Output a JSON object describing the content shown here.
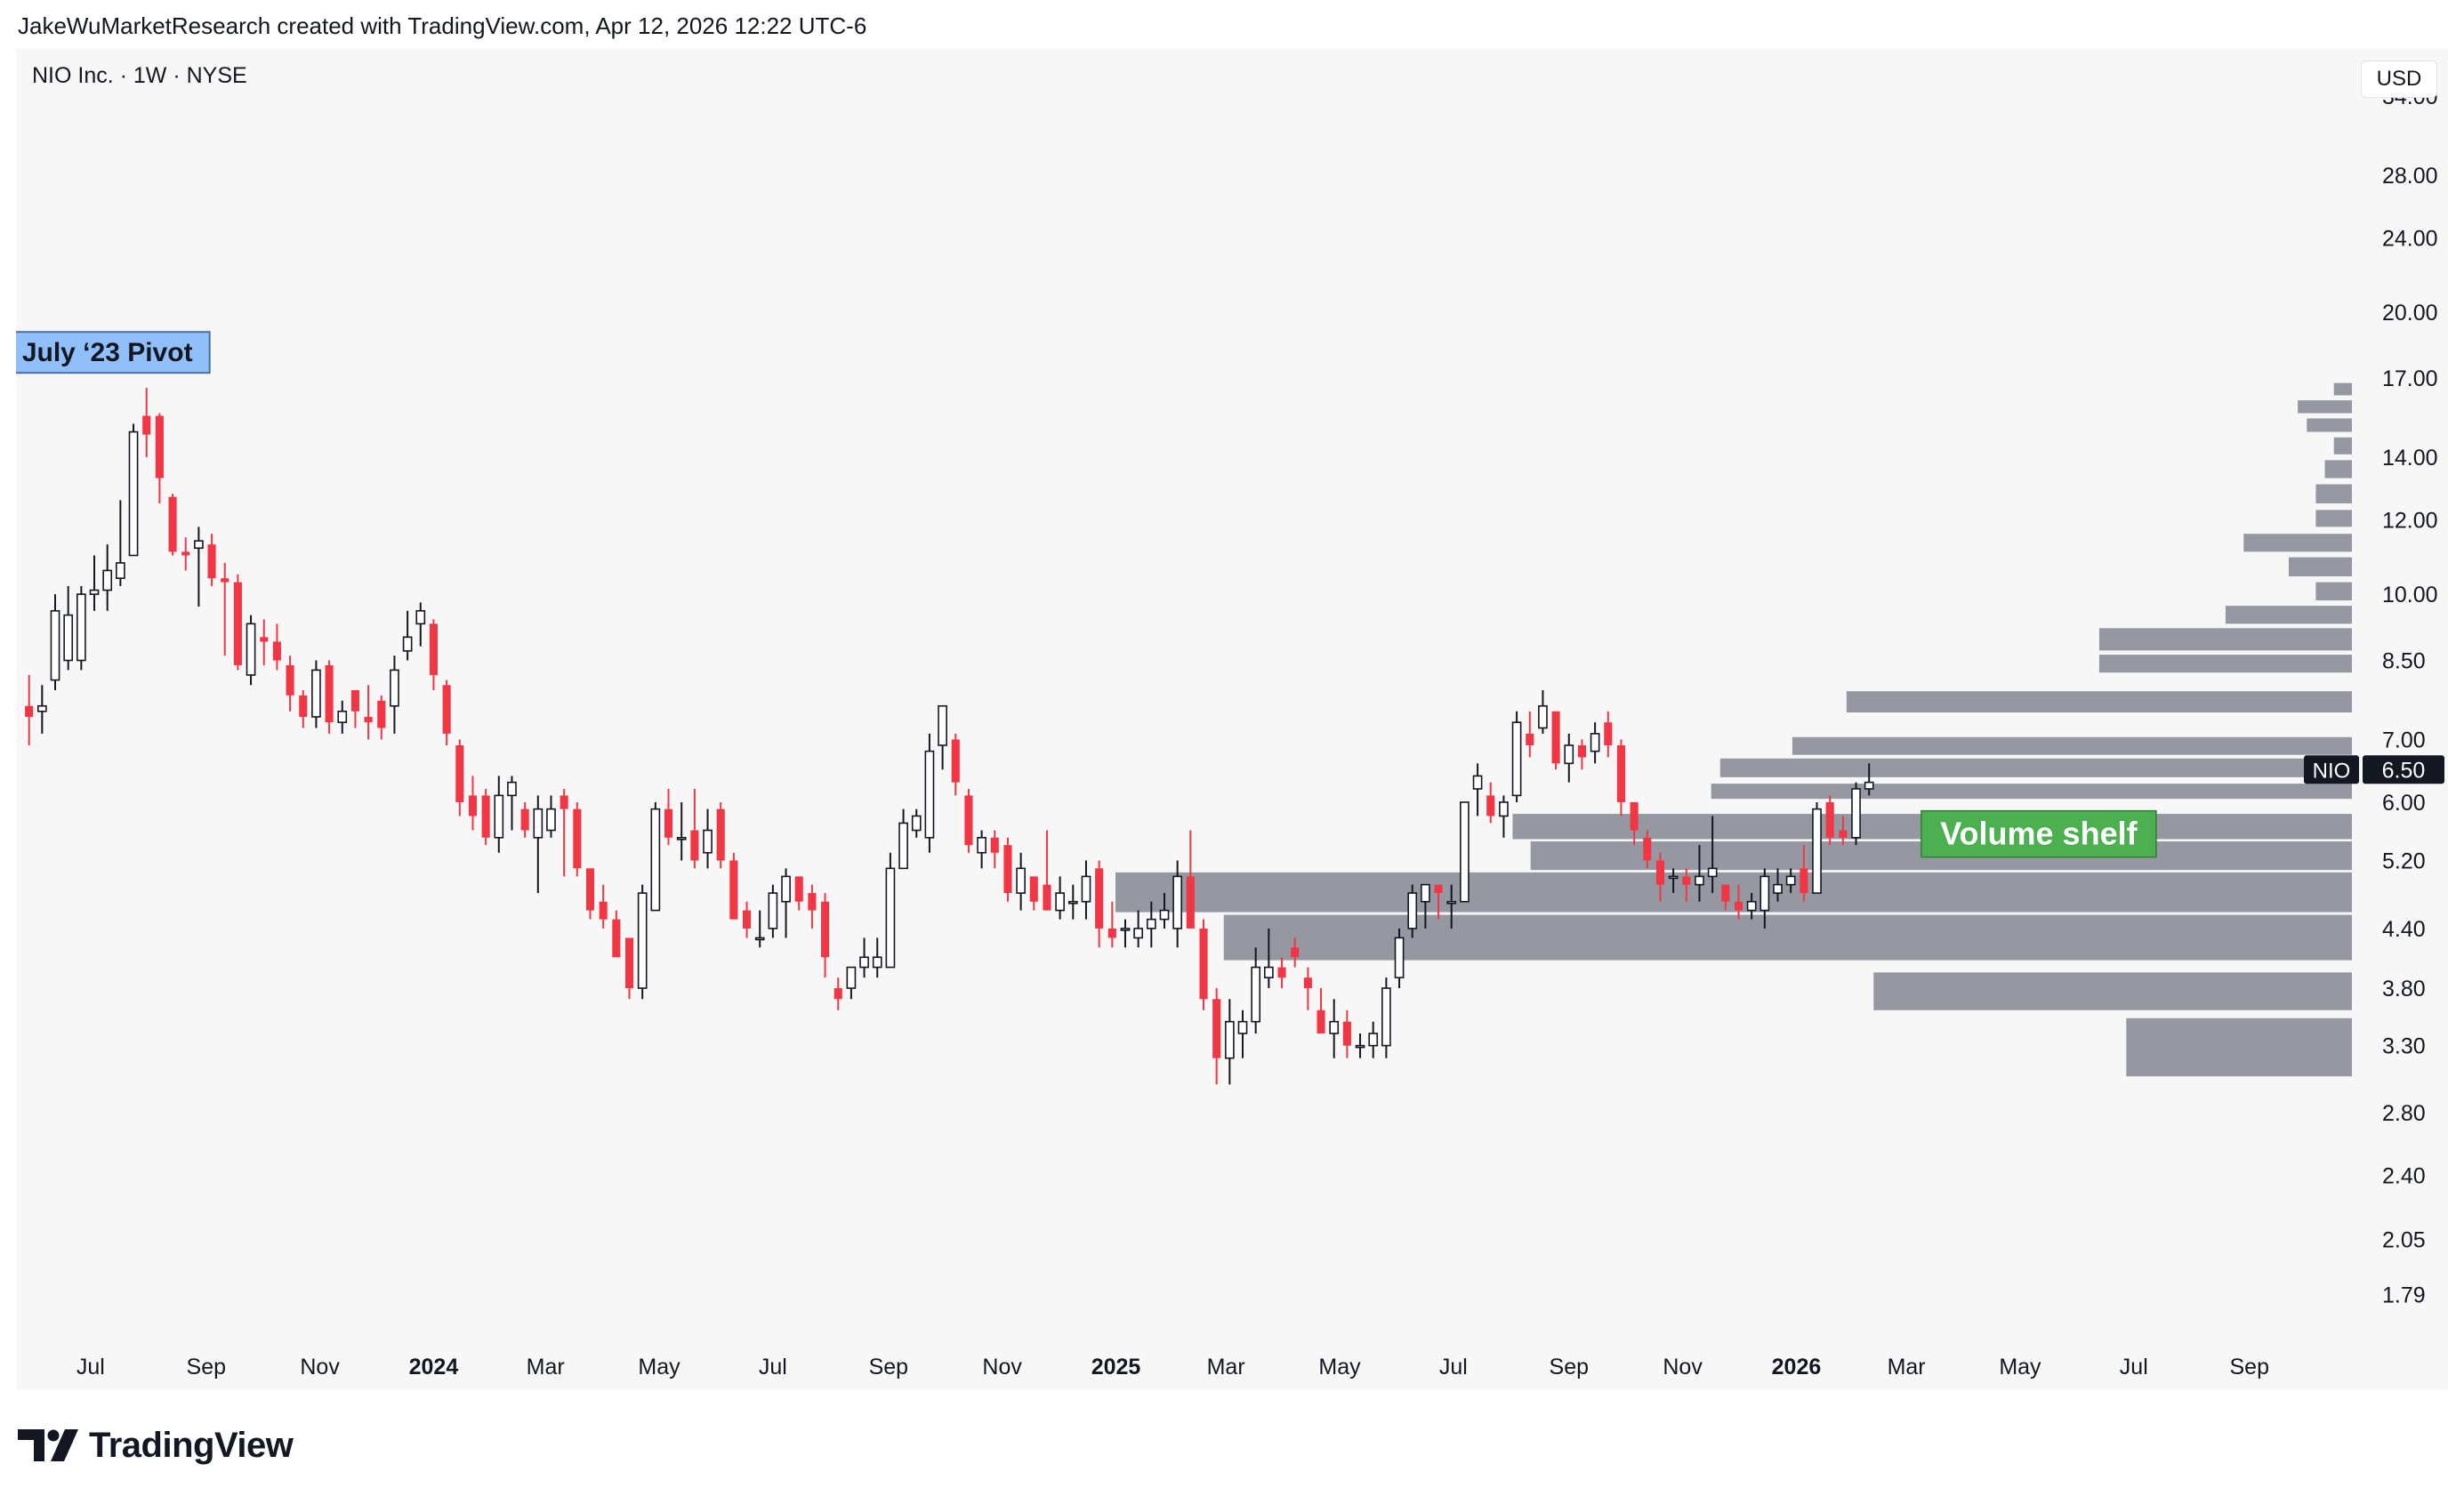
{
  "header": {
    "attribution": "JakeWuMarketResearch created with TradingView.com, Apr 12, 2026 12:22 UTC-6"
  },
  "legend": {
    "symbol_line": "NIO Inc. · 1W · NYSE"
  },
  "currency_button": "USD",
  "footer": {
    "brand": "TradingView"
  },
  "colors": {
    "panel_bg": "#f7f7f7",
    "up_fill": "#ffffff",
    "up_border": "#131722",
    "down_fill": "#f23645",
    "volume_bar": "#9598a1",
    "pivot_bg": "#90bff9",
    "shelf_bg": "#4caf50",
    "price_tag_bg": "#131722"
  },
  "chart_data": {
    "type": "candlestick",
    "interval": "1W",
    "scale": "log",
    "ylim": [
      1.6,
      38
    ],
    "y_ticks": [
      1.79,
      2.05,
      2.4,
      2.8,
      3.3,
      3.8,
      4.4,
      5.2,
      6.0,
      7.0,
      8.5,
      10.0,
      12.0,
      14.0,
      17.0,
      20.0,
      24.0,
      28.0,
      34.0
    ],
    "y_tick_labels": [
      "1.79",
      "2.05",
      "2.40",
      "2.80",
      "3.30",
      "3.80",
      "4.40",
      "5.20",
      "6.00",
      "7.00",
      "8.50",
      "10.00",
      "12.00",
      "14.00",
      "17.00",
      "20.00",
      "24.00",
      "28.00",
      "34.00"
    ],
    "x_ticks": [
      {
        "date": "2023-07-01",
        "label": "Jul",
        "bold": false
      },
      {
        "date": "2023-09-01",
        "label": "Sep",
        "bold": false
      },
      {
        "date": "2023-11-01",
        "label": "Nov",
        "bold": false
      },
      {
        "date": "2024-01-01",
        "label": "2024",
        "bold": true
      },
      {
        "date": "2024-03-01",
        "label": "Mar",
        "bold": false
      },
      {
        "date": "2024-05-01",
        "label": "May",
        "bold": false
      },
      {
        "date": "2024-07-01",
        "label": "Jul",
        "bold": false
      },
      {
        "date": "2024-09-01",
        "label": "Sep",
        "bold": false
      },
      {
        "date": "2024-11-01",
        "label": "Nov",
        "bold": false
      },
      {
        "date": "2025-01-01",
        "label": "2025",
        "bold": true
      },
      {
        "date": "2025-03-01",
        "label": "Mar",
        "bold": false
      },
      {
        "date": "2025-05-01",
        "label": "May",
        "bold": false
      },
      {
        "date": "2025-07-01",
        "label": "Jul",
        "bold": false
      },
      {
        "date": "2025-09-01",
        "label": "Sep",
        "bold": false
      },
      {
        "date": "2025-11-01",
        "label": "Nov",
        "bold": false
      },
      {
        "date": "2026-01-01",
        "label": "2026",
        "bold": true
      },
      {
        "date": "2026-03-01",
        "label": "Mar",
        "bold": false
      },
      {
        "date": "2026-05-01",
        "label": "May",
        "bold": false
      },
      {
        "date": "2026-07-01",
        "label": "Jul",
        "bold": false
      },
      {
        "date": "2026-09-01",
        "label": "Sep",
        "bold": false
      }
    ],
    "x_range": [
      "2023-05-22",
      "2026-10-26"
    ],
    "first_candle_week": "2023-05-29",
    "candles": [
      {
        "o": 7.6,
        "h": 8.2,
        "l": 6.9,
        "c": 7.4
      },
      {
        "o": 7.5,
        "h": 8.0,
        "l": 7.1,
        "c": 7.6
      },
      {
        "o": 8.1,
        "h": 10.0,
        "l": 7.9,
        "c": 9.6
      },
      {
        "o": 8.5,
        "h": 10.2,
        "l": 8.3,
        "c": 9.5
      },
      {
        "o": 8.5,
        "h": 10.2,
        "l": 8.3,
        "c": 10.0
      },
      {
        "o": 10.0,
        "h": 11.0,
        "l": 9.6,
        "c": 10.1
      },
      {
        "o": 10.1,
        "h": 11.3,
        "l": 9.6,
        "c": 10.6
      },
      {
        "o": 10.4,
        "h": 12.6,
        "l": 10.2,
        "c": 10.8
      },
      {
        "o": 11.0,
        "h": 15.2,
        "l": 11.0,
        "c": 14.9
      },
      {
        "o": 15.5,
        "h": 16.6,
        "l": 14.0,
        "c": 14.8
      },
      {
        "o": 15.5,
        "h": 15.6,
        "l": 12.5,
        "c": 13.3
      },
      {
        "o": 12.7,
        "h": 12.8,
        "l": 11.0,
        "c": 11.1
      },
      {
        "o": 11.1,
        "h": 11.5,
        "l": 10.6,
        "c": 11.0
      },
      {
        "o": 11.2,
        "h": 11.8,
        "l": 9.7,
        "c": 11.4
      },
      {
        "o": 11.3,
        "h": 11.6,
        "l": 10.2,
        "c": 10.4
      },
      {
        "o": 10.4,
        "h": 10.8,
        "l": 8.6,
        "c": 10.3
      },
      {
        "o": 10.3,
        "h": 10.5,
        "l": 8.3,
        "c": 8.4
      },
      {
        "o": 8.2,
        "h": 9.5,
        "l": 8.0,
        "c": 9.3
      },
      {
        "o": 9.0,
        "h": 9.4,
        "l": 8.4,
        "c": 8.9
      },
      {
        "o": 8.9,
        "h": 9.3,
        "l": 8.3,
        "c": 8.5
      },
      {
        "o": 8.4,
        "h": 8.6,
        "l": 7.5,
        "c": 7.8
      },
      {
        "o": 7.8,
        "h": 7.9,
        "l": 7.2,
        "c": 7.4
      },
      {
        "o": 7.4,
        "h": 8.5,
        "l": 7.2,
        "c": 8.3
      },
      {
        "o": 8.4,
        "h": 8.5,
        "l": 7.1,
        "c": 7.3
      },
      {
        "o": 7.3,
        "h": 7.7,
        "l": 7.1,
        "c": 7.5
      },
      {
        "o": 7.9,
        "h": 7.9,
        "l": 7.2,
        "c": 7.5
      },
      {
        "o": 7.4,
        "h": 8.0,
        "l": 7.0,
        "c": 7.3
      },
      {
        "o": 7.7,
        "h": 7.8,
        "l": 7.0,
        "c": 7.2
      },
      {
        "o": 7.6,
        "h": 8.6,
        "l": 7.1,
        "c": 8.3
      },
      {
        "o": 8.7,
        "h": 9.6,
        "l": 8.5,
        "c": 9.0
      },
      {
        "o": 9.3,
        "h": 9.8,
        "l": 8.8,
        "c": 9.6
      },
      {
        "o": 9.3,
        "h": 9.4,
        "l": 7.9,
        "c": 8.2
      },
      {
        "o": 8.0,
        "h": 8.1,
        "l": 6.9,
        "c": 7.1
      },
      {
        "o": 6.9,
        "h": 7.0,
        "l": 5.8,
        "c": 6.0
      },
      {
        "o": 6.1,
        "h": 6.4,
        "l": 5.6,
        "c": 5.8
      },
      {
        "o": 6.1,
        "h": 6.2,
        "l": 5.4,
        "c": 5.5
      },
      {
        "o": 5.5,
        "h": 6.4,
        "l": 5.3,
        "c": 6.1
      },
      {
        "o": 6.1,
        "h": 6.4,
        "l": 5.6,
        "c": 6.3
      },
      {
        "o": 5.9,
        "h": 6.0,
        "l": 5.5,
        "c": 5.6
      },
      {
        "o": 5.5,
        "h": 6.1,
        "l": 4.8,
        "c": 5.9
      },
      {
        "o": 5.6,
        "h": 6.1,
        "l": 5.5,
        "c": 5.9
      },
      {
        "o": 6.1,
        "h": 6.2,
        "l": 5.0,
        "c": 5.9
      },
      {
        "o": 5.9,
        "h": 6.0,
        "l": 5.0,
        "c": 5.1
      },
      {
        "o": 5.1,
        "h": 5.1,
        "l": 4.5,
        "c": 4.6
      },
      {
        "o": 4.7,
        "h": 4.9,
        "l": 4.4,
        "c": 4.5
      },
      {
        "o": 4.5,
        "h": 4.6,
        "l": 4.1,
        "c": 4.1
      },
      {
        "o": 4.3,
        "h": 4.3,
        "l": 3.7,
        "c": 3.8
      },
      {
        "o": 3.8,
        "h": 4.9,
        "l": 3.7,
        "c": 4.8
      },
      {
        "o": 4.6,
        "h": 6.0,
        "l": 4.6,
        "c": 5.9
      },
      {
        "o": 5.9,
        "h": 6.2,
        "l": 5.4,
        "c": 5.5
      },
      {
        "o": 5.5,
        "h": 6.0,
        "l": 5.2,
        "c": 5.5
      },
      {
        "o": 5.6,
        "h": 6.2,
        "l": 5.1,
        "c": 5.2
      },
      {
        "o": 5.3,
        "h": 5.9,
        "l": 5.1,
        "c": 5.6
      },
      {
        "o": 5.9,
        "h": 6.0,
        "l": 5.1,
        "c": 5.2
      },
      {
        "o": 5.2,
        "h": 5.3,
        "l": 4.5,
        "c": 4.5
      },
      {
        "o": 4.6,
        "h": 4.7,
        "l": 4.3,
        "c": 4.4
      },
      {
        "o": 4.3,
        "h": 4.6,
        "l": 4.2,
        "c": 4.3
      },
      {
        "o": 4.4,
        "h": 4.9,
        "l": 4.3,
        "c": 4.8
      },
      {
        "o": 4.7,
        "h": 5.1,
        "l": 4.3,
        "c": 5.0
      },
      {
        "o": 5.0,
        "h": 5.0,
        "l": 4.6,
        "c": 4.7
      },
      {
        "o": 4.8,
        "h": 4.9,
        "l": 4.4,
        "c": 4.6
      },
      {
        "o": 4.7,
        "h": 4.8,
        "l": 3.9,
        "c": 4.1
      },
      {
        "o": 3.8,
        "h": 3.9,
        "l": 3.6,
        "c": 3.7
      },
      {
        "o": 3.8,
        "h": 4.0,
        "l": 3.7,
        "c": 4.0
      },
      {
        "o": 4.0,
        "h": 4.3,
        "l": 3.9,
        "c": 4.1
      },
      {
        "o": 4.0,
        "h": 4.3,
        "l": 3.9,
        "c": 4.1
      },
      {
        "o": 4.0,
        "h": 5.3,
        "l": 4.0,
        "c": 5.1
      },
      {
        "o": 5.1,
        "h": 5.9,
        "l": 5.1,
        "c": 5.7
      },
      {
        "o": 5.6,
        "h": 5.9,
        "l": 5.5,
        "c": 5.8
      },
      {
        "o": 5.5,
        "h": 7.1,
        "l": 5.3,
        "c": 6.8
      },
      {
        "o": 6.9,
        "h": 7.6,
        "l": 6.5,
        "c": 7.6
      },
      {
        "o": 7.0,
        "h": 7.1,
        "l": 6.1,
        "c": 6.3
      },
      {
        "o": 6.1,
        "h": 6.2,
        "l": 5.3,
        "c": 5.4
      },
      {
        "o": 5.3,
        "h": 5.6,
        "l": 5.1,
        "c": 5.5
      },
      {
        "o": 5.5,
        "h": 5.6,
        "l": 5.1,
        "c": 5.3
      },
      {
        "o": 5.4,
        "h": 5.5,
        "l": 4.7,
        "c": 4.8
      },
      {
        "o": 4.8,
        "h": 5.3,
        "l": 4.6,
        "c": 5.1
      },
      {
        "o": 5.0,
        "h": 5.0,
        "l": 4.6,
        "c": 4.7
      },
      {
        "o": 4.9,
        "h": 5.6,
        "l": 4.6,
        "c": 4.6
      },
      {
        "o": 4.6,
        "h": 5.0,
        "l": 4.5,
        "c": 4.8
      },
      {
        "o": 4.7,
        "h": 4.9,
        "l": 4.5,
        "c": 4.7
      },
      {
        "o": 4.7,
        "h": 5.2,
        "l": 4.5,
        "c": 5.0
      },
      {
        "o": 5.1,
        "h": 5.2,
        "l": 4.2,
        "c": 4.4
      },
      {
        "o": 4.4,
        "h": 4.7,
        "l": 4.2,
        "c": 4.3
      },
      {
        "o": 4.4,
        "h": 4.5,
        "l": 4.2,
        "c": 4.4
      },
      {
        "o": 4.3,
        "h": 4.6,
        "l": 4.2,
        "c": 4.4
      },
      {
        "o": 4.4,
        "h": 4.7,
        "l": 4.2,
        "c": 4.5
      },
      {
        "o": 4.5,
        "h": 4.8,
        "l": 4.4,
        "c": 4.6
      },
      {
        "o": 4.4,
        "h": 5.2,
        "l": 4.2,
        "c": 5.0
      },
      {
        "o": 5.0,
        "h": 5.6,
        "l": 4.4,
        "c": 4.4
      },
      {
        "o": 4.4,
        "h": 4.5,
        "l": 3.6,
        "c": 3.7
      },
      {
        "o": 3.7,
        "h": 3.8,
        "l": 3.0,
        "c": 3.2
      },
      {
        "o": 3.2,
        "h": 3.7,
        "l": 3.0,
        "c": 3.5
      },
      {
        "o": 3.4,
        "h": 3.6,
        "l": 3.2,
        "c": 3.5
      },
      {
        "o": 3.5,
        "h": 4.2,
        "l": 3.4,
        "c": 4.0
      },
      {
        "o": 3.9,
        "h": 4.4,
        "l": 3.8,
        "c": 4.0
      },
      {
        "o": 4.0,
        "h": 4.1,
        "l": 3.8,
        "c": 3.9
      },
      {
        "o": 4.2,
        "h": 4.3,
        "l": 4.0,
        "c": 4.1
      },
      {
        "o": 3.9,
        "h": 4.0,
        "l": 3.6,
        "c": 3.8
      },
      {
        "o": 3.6,
        "h": 3.8,
        "l": 3.4,
        "c": 3.4
      },
      {
        "o": 3.4,
        "h": 3.7,
        "l": 3.2,
        "c": 3.5
      },
      {
        "o": 3.5,
        "h": 3.6,
        "l": 3.2,
        "c": 3.3
      },
      {
        "o": 3.3,
        "h": 3.4,
        "l": 3.2,
        "c": 3.3
      },
      {
        "o": 3.3,
        "h": 3.5,
        "l": 3.2,
        "c": 3.4
      },
      {
        "o": 3.3,
        "h": 3.9,
        "l": 3.2,
        "c": 3.8
      },
      {
        "o": 3.9,
        "h": 4.4,
        "l": 3.8,
        "c": 4.3
      },
      {
        "o": 4.4,
        "h": 4.9,
        "l": 4.3,
        "c": 4.8
      },
      {
        "o": 4.7,
        "h": 4.9,
        "l": 4.4,
        "c": 4.9
      },
      {
        "o": 4.9,
        "h": 4.9,
        "l": 4.5,
        "c": 4.8
      },
      {
        "o": 4.7,
        "h": 4.9,
        "l": 4.4,
        "c": 4.7
      },
      {
        "o": 4.7,
        "h": 6.0,
        "l": 4.7,
        "c": 6.0
      },
      {
        "o": 6.2,
        "h": 6.6,
        "l": 5.8,
        "c": 6.4
      },
      {
        "o": 6.1,
        "h": 6.3,
        "l": 5.7,
        "c": 5.8
      },
      {
        "o": 5.8,
        "h": 6.1,
        "l": 5.5,
        "c": 6.0
      },
      {
        "o": 6.1,
        "h": 7.5,
        "l": 6.0,
        "c": 7.3
      },
      {
        "o": 7.1,
        "h": 7.5,
        "l": 6.7,
        "c": 6.9
      },
      {
        "o": 7.2,
        "h": 7.9,
        "l": 7.1,
        "c": 7.6
      },
      {
        "o": 7.5,
        "h": 7.5,
        "l": 6.5,
        "c": 6.6
      },
      {
        "o": 6.6,
        "h": 7.1,
        "l": 6.3,
        "c": 6.9
      },
      {
        "o": 6.9,
        "h": 7.0,
        "l": 6.5,
        "c": 6.7
      },
      {
        "o": 6.8,
        "h": 7.3,
        "l": 6.6,
        "c": 7.1
      },
      {
        "o": 7.3,
        "h": 7.5,
        "l": 6.7,
        "c": 6.9
      },
      {
        "o": 6.9,
        "h": 7.0,
        "l": 5.8,
        "c": 6.0
      },
      {
        "o": 6.0,
        "h": 6.0,
        "l": 5.4,
        "c": 5.6
      },
      {
        "o": 5.5,
        "h": 5.6,
        "l": 5.1,
        "c": 5.2
      },
      {
        "o": 5.2,
        "h": 5.3,
        "l": 4.7,
        "c": 4.9
      },
      {
        "o": 5.0,
        "h": 5.1,
        "l": 4.8,
        "c": 5.0
      },
      {
        "o": 5.0,
        "h": 5.1,
        "l": 4.7,
        "c": 4.9
      },
      {
        "o": 4.9,
        "h": 5.4,
        "l": 4.7,
        "c": 5.0
      },
      {
        "o": 5.0,
        "h": 5.8,
        "l": 4.8,
        "c": 5.1
      },
      {
        "o": 4.9,
        "h": 4.9,
        "l": 4.6,
        "c": 4.7
      },
      {
        "o": 4.7,
        "h": 4.9,
        "l": 4.5,
        "c": 4.6
      },
      {
        "o": 4.6,
        "h": 4.8,
        "l": 4.5,
        "c": 4.7
      },
      {
        "o": 4.6,
        "h": 5.1,
        "l": 4.4,
        "c": 5.0
      },
      {
        "o": 4.8,
        "h": 5.1,
        "l": 4.7,
        "c": 4.9
      },
      {
        "o": 4.9,
        "h": 5.1,
        "l": 4.8,
        "c": 5.0
      },
      {
        "o": 5.1,
        "h": 5.4,
        "l": 4.7,
        "c": 4.8
      },
      {
        "o": 4.8,
        "h": 6.0,
        "l": 4.8,
        "c": 5.9
      },
      {
        "o": 6.0,
        "h": 6.1,
        "l": 5.4,
        "c": 5.5
      },
      {
        "o": 5.6,
        "h": 5.8,
        "l": 5.4,
        "c": 5.5
      },
      {
        "o": 5.5,
        "h": 6.3,
        "l": 5.4,
        "c": 6.2
      },
      {
        "o": 6.2,
        "h": 6.6,
        "l": 6.1,
        "c": 6.3
      }
    ],
    "volume_profile": [
      {
        "low": 3.06,
        "high": 3.53,
        "width": 0.25
      },
      {
        "low": 3.6,
        "high": 3.95,
        "width": 0.53
      },
      {
        "low": 4.07,
        "high": 4.55,
        "width": 1.25
      },
      {
        "low": 4.58,
        "high": 5.05,
        "width": 1.37
      },
      {
        "low": 5.08,
        "high": 5.45,
        "width": 0.91
      },
      {
        "low": 5.48,
        "high": 5.83,
        "width": 0.93
      },
      {
        "low": 6.05,
        "high": 6.28,
        "width": 0.71
      },
      {
        "low": 6.38,
        "high": 6.68,
        "width": 0.7
      },
      {
        "low": 6.74,
        "high": 7.04,
        "width": 0.62
      },
      {
        "low": 7.48,
        "high": 7.88,
        "width": 0.56
      },
      {
        "low": 8.25,
        "high": 8.62,
        "width": 0.28
      },
      {
        "low": 8.71,
        "high": 9.2,
        "width": 0.28
      },
      {
        "low": 9.3,
        "high": 9.72,
        "width": 0.14
      },
      {
        "low": 9.85,
        "high": 10.3,
        "width": 0.04
      },
      {
        "low": 10.45,
        "high": 10.95,
        "width": 0.07
      },
      {
        "low": 11.1,
        "high": 11.6,
        "width": 0.12
      },
      {
        "low": 11.8,
        "high": 12.3,
        "width": 0.04
      },
      {
        "low": 12.5,
        "high": 13.1,
        "width": 0.04
      },
      {
        "low": 13.3,
        "high": 13.9,
        "width": 0.03
      },
      {
        "low": 14.1,
        "high": 14.7,
        "width": 0.02
      },
      {
        "low": 14.9,
        "high": 15.4,
        "width": 0.05
      },
      {
        "low": 15.6,
        "high": 16.1,
        "width": 0.06
      },
      {
        "low": 16.3,
        "high": 16.8,
        "width": 0.02
      }
    ],
    "last_price": {
      "symbol": "NIO",
      "value": "6.50"
    },
    "annotations": [
      {
        "text": "July ‘23 Pivot",
        "date": "2023-07-10",
        "price": 17.0
      },
      {
        "text": "Volume shelf",
        "date": "2026-05-11",
        "price": 5.55
      }
    ]
  }
}
